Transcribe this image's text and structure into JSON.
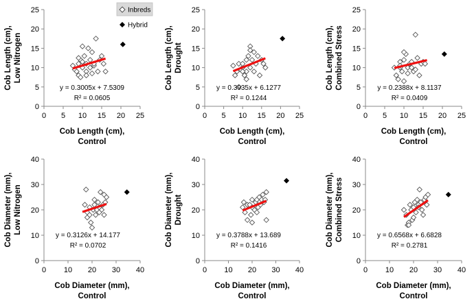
{
  "legend": {
    "entries": [
      {
        "label": "Inbreds",
        "marker": "open-diamond"
      },
      {
        "label": "Hybrid",
        "marker": "filled-diamond"
      }
    ]
  },
  "colors": {
    "trendline": "#ee1111",
    "marker": "#000000",
    "marker_fill_open": "#ffffff"
  },
  "chart_data": [
    {
      "type": "scatter",
      "panel": "top-left",
      "xlabel": [
        "Cob Length (cm),",
        "Control"
      ],
      "ylabel": [
        "Cob Length (cm),",
        "Low Nitrogen"
      ],
      "xlim": [
        0,
        25
      ],
      "ylim": [
        0,
        25
      ],
      "xticks": [
        "0",
        "5",
        "10",
        "15",
        "20",
        "25"
      ],
      "yticks": [
        "0",
        "5",
        "10",
        "15",
        "20",
        "25"
      ],
      "equation": "y = 0.3005x + 7.5309",
      "r2": "R² = 0.0605",
      "trend": {
        "slope": 0.3005,
        "intercept": 7.5309,
        "x_range": [
          7.5,
          16
        ]
      },
      "inbreds": [
        [
          7.5,
          10.5
        ],
        [
          8,
          9.5
        ],
        [
          8.5,
          9
        ],
        [
          9,
          11
        ],
        [
          9,
          8
        ],
        [
          9.5,
          12
        ],
        [
          9.5,
          7.5
        ],
        [
          10,
          10
        ],
        [
          10,
          11.5
        ],
        [
          10.5,
          13
        ],
        [
          11,
          11
        ],
        [
          11,
          9
        ],
        [
          11,
          8
        ],
        [
          11.5,
          15
        ],
        [
          12,
          10
        ],
        [
          12,
          12
        ],
        [
          12.5,
          8.5
        ],
        [
          13,
          10.5
        ],
        [
          13,
          11
        ],
        [
          13.5,
          17.5
        ],
        [
          14,
          9
        ],
        [
          14.5,
          12
        ],
        [
          15,
          13
        ],
        [
          15.5,
          11
        ],
        [
          16,
          9
        ],
        [
          10,
          15.5
        ],
        [
          12.5,
          14
        ],
        [
          9,
          12.5
        ]
      ],
      "hybrid": [
        [
          20.5,
          16
        ]
      ]
    },
    {
      "type": "scatter",
      "panel": "top-center",
      "xlabel": [
        "Cob Length (cm),",
        "Control"
      ],
      "ylabel": [
        "Cob Length (cm),",
        "Drought"
      ],
      "xlim": [
        0,
        25
      ],
      "ylim": [
        0,
        25
      ],
      "xticks": [
        "0",
        "5",
        "10",
        "15",
        "20",
        "25"
      ],
      "yticks": [
        "0",
        "5",
        "10",
        "15",
        "20",
        "25"
      ],
      "equation": "y = 0.3935x + 6.1277",
      "r2": "R² = 0.1244",
      "trend": {
        "slope": 0.3935,
        "intercept": 6.1277,
        "x_range": [
          7.5,
          16
        ]
      },
      "inbreds": [
        [
          7.5,
          10.5
        ],
        [
          8,
          8
        ],
        [
          8.5,
          9
        ],
        [
          9,
          5
        ],
        [
          9,
          11
        ],
        [
          9.5,
          9.5
        ],
        [
          10,
          10
        ],
        [
          10,
          11
        ],
        [
          10.5,
          8
        ],
        [
          11,
          9
        ],
        [
          11,
          12
        ],
        [
          11.5,
          13
        ],
        [
          12,
          15.5
        ],
        [
          12,
          10
        ],
        [
          12.5,
          12
        ],
        [
          13,
          14
        ],
        [
          13,
          9
        ],
        [
          13.5,
          11
        ],
        [
          14,
          13
        ],
        [
          14.5,
          8
        ],
        [
          15,
          12
        ],
        [
          15.5,
          11
        ],
        [
          16,
          10
        ],
        [
          10,
          9
        ],
        [
          11,
          7
        ],
        [
          12,
          14.5
        ]
      ],
      "hybrid": [
        [
          20.5,
          17.5
        ]
      ]
    },
    {
      "type": "scatter",
      "panel": "top-right",
      "xlabel": [
        "Cob Length (cm),",
        "Control"
      ],
      "ylabel": [
        "Cob Length (cm),",
        "Combined Stress"
      ],
      "xlim": [
        0,
        25
      ],
      "ylim": [
        0,
        25
      ],
      "xticks": [
        "0",
        "5",
        "10",
        "15",
        "20",
        "25"
      ],
      "yticks": [
        "0",
        "5",
        "10",
        "15",
        "20",
        "25"
      ],
      "equation": "y = 0.2388x + 8.1137",
      "r2": "R² = 0.0409",
      "trend": {
        "slope": 0.2388,
        "intercept": 8.1137,
        "x_range": [
          7.5,
          16
        ]
      },
      "inbreds": [
        [
          7.5,
          10
        ],
        [
          8,
          8
        ],
        [
          8.5,
          7
        ],
        [
          9,
          10
        ],
        [
          9,
          11.5
        ],
        [
          9.5,
          9
        ],
        [
          10,
          6.5
        ],
        [
          10,
          12
        ],
        [
          10.5,
          13.5
        ],
        [
          11,
          10
        ],
        [
          11,
          8.5
        ],
        [
          11.5,
          11
        ],
        [
          12,
          10
        ],
        [
          12.5,
          9
        ],
        [
          13,
          18.5
        ],
        [
          13.5,
          12.5
        ],
        [
          13,
          9.5
        ],
        [
          14,
          8
        ],
        [
          14.5,
          11
        ],
        [
          15,
          11.5
        ],
        [
          15.5,
          11
        ],
        [
          10,
          14
        ],
        [
          12,
          11.5
        ],
        [
          9,
          10.5
        ]
      ],
      "hybrid": [
        [
          20.5,
          13.5
        ]
      ]
    },
    {
      "type": "scatter",
      "panel": "bottom-left",
      "xlabel": [
        "Cob Diameter (mm),",
        "Control"
      ],
      "ylabel": [
        "Cob Diameter (mm),",
        "Low Nitrogen"
      ],
      "xlim": [
        0,
        40
      ],
      "ylim": [
        0,
        40
      ],
      "xticks": [
        "0",
        "10",
        "20",
        "30",
        "40"
      ],
      "yticks": [
        "0",
        "10",
        "20",
        "30",
        "40"
      ],
      "equation": "y = 0.3126x + 14.177",
      "r2": "R² = 0.0702",
      "trend": {
        "slope": 0.3126,
        "intercept": 14.177,
        "x_range": [
          16,
          26
        ]
      },
      "inbreds": [
        [
          17,
          22
        ],
        [
          17.5,
          28
        ],
        [
          18,
          19
        ],
        [
          18,
          17
        ],
        [
          19,
          21
        ],
        [
          19.5,
          15
        ],
        [
          20,
          13
        ],
        [
          20.5,
          20
        ],
        [
          21,
          22
        ],
        [
          21.5,
          18
        ],
        [
          22,
          20
        ],
        [
          22.5,
          23
        ],
        [
          23,
          21
        ],
        [
          23.5,
          27
        ],
        [
          24,
          20
        ],
        [
          24.5,
          22
        ],
        [
          25,
          26
        ],
        [
          25,
          18
        ],
        [
          25.5,
          23
        ],
        [
          26,
          25
        ],
        [
          21,
          24
        ],
        [
          23,
          19
        ],
        [
          19,
          18
        ]
      ],
      "hybrid": [
        [
          34.5,
          27
        ]
      ]
    },
    {
      "type": "scatter",
      "panel": "bottom-center",
      "xlabel": [
        "Cob Diameter (mm),",
        "Control"
      ],
      "ylabel": [
        "Cob Diameter (mm),",
        "Drought"
      ],
      "xlim": [
        0,
        40
      ],
      "ylim": [
        0,
        40
      ],
      "xticks": [
        "0",
        "10",
        "20",
        "30",
        "40"
      ],
      "yticks": [
        "0",
        "10",
        "20",
        "30",
        "40"
      ],
      "equation": "y = 0.3788x + 13.689",
      "r2": "R² = 0.1416",
      "trend": {
        "slope": 0.3788,
        "intercept": 13.689,
        "x_range": [
          16,
          26
        ]
      },
      "inbreds": [
        [
          16,
          21
        ],
        [
          16.5,
          23
        ],
        [
          17,
          19
        ],
        [
          18,
          16
        ],
        [
          18,
          22
        ],
        [
          19,
          22
        ],
        [
          19.5,
          18
        ],
        [
          20,
          24
        ],
        [
          20,
          15
        ],
        [
          21,
          20
        ],
        [
          21.5,
          23
        ],
        [
          22,
          24
        ],
        [
          22.5,
          21
        ],
        [
          23,
          25
        ],
        [
          23.5,
          22
        ],
        [
          24,
          24
        ],
        [
          24.5,
          26
        ],
        [
          25,
          23
        ],
        [
          25.5,
          24
        ],
        [
          26,
          16
        ],
        [
          26,
          27
        ],
        [
          20,
          21
        ],
        [
          22,
          19
        ]
      ],
      "hybrid": [
        [
          34.5,
          31.5
        ]
      ]
    },
    {
      "type": "scatter",
      "panel": "bottom-right",
      "xlabel": [
        "Cob Diameter (mm),",
        "Control"
      ],
      "ylabel": [
        "Cob Diameter (mm),",
        "Combined Stress"
      ],
      "xlim": [
        0,
        40
      ],
      "ylim": [
        0,
        40
      ],
      "xticks": [
        "0",
        "10",
        "20",
        "30",
        "40"
      ],
      "yticks": [
        "0",
        "10",
        "20",
        "30",
        "40"
      ],
      "equation": "y = 0.6568x + 6.6828",
      "r2": "R² = 0.2781",
      "trend": {
        "slope": 0.6568,
        "intercept": 6.6828,
        "x_range": [
          16,
          26
        ]
      },
      "inbreds": [
        [
          16,
          20
        ],
        [
          17,
          18
        ],
        [
          17.5,
          14
        ],
        [
          18,
          15
        ],
        [
          18.5,
          22
        ],
        [
          19,
          20
        ],
        [
          19.5,
          16
        ],
        [
          20,
          21
        ],
        [
          20.5,
          23
        ],
        [
          21,
          19
        ],
        [
          21.5,
          24
        ],
        [
          22,
          22
        ],
        [
          22.5,
          28
        ],
        [
          23,
          23
        ],
        [
          23.5,
          20
        ],
        [
          24,
          18
        ],
        [
          24.5,
          24
        ],
        [
          25,
          25
        ],
        [
          25.5,
          22
        ],
        [
          26,
          26
        ],
        [
          20,
          17
        ],
        [
          22,
          21
        ],
        [
          18,
          14
        ]
      ],
      "hybrid": [
        [
          34.5,
          26
        ]
      ]
    }
  ]
}
